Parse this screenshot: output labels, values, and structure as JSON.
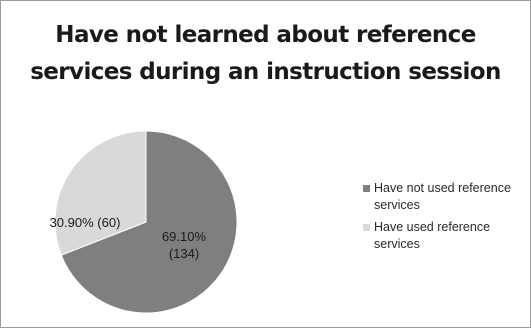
{
  "chart_data": {
    "type": "pie",
    "title_lines": [
      "Have not learned about reference",
      "services during an instruction session"
    ],
    "slices": [
      {
        "name": "Have not used reference services",
        "legend_lines": [
          "Have not used reference",
          "services"
        ],
        "percent_label": "69.10%",
        "count_label": "(134)",
        "value": 134,
        "percent": 69.1,
        "color": "#7f7f7f"
      },
      {
        "name": "Have used reference services",
        "legend_lines": [
          "Have used reference",
          "services"
        ],
        "percent_label": "30.90%",
        "count_label": "(60)",
        "value": 60,
        "percent": 30.9,
        "color": "#d9d9d9"
      }
    ],
    "start_angle_deg": 0,
    "direction": "clockwise",
    "legend_position": "right",
    "grid": false
  }
}
